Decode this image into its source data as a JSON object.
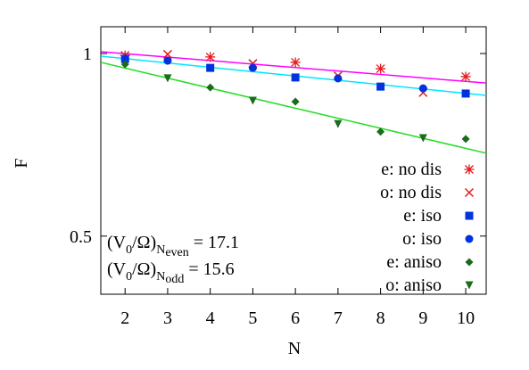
{
  "chart_data": {
    "type": "scatter",
    "xlabel": "N",
    "ylabel": "F",
    "log_y": true,
    "xlim": [
      1.43,
      10.48
    ],
    "ylim": [
      0.401,
      1.107
    ],
    "xticks": [
      2,
      3,
      4,
      5,
      6,
      7,
      8,
      9,
      10
    ],
    "yticks": [
      0.5,
      1
    ],
    "series": [
      {
        "name": "e: no dis",
        "color": "#e41a1c",
        "marker": "asterisk",
        "x": [
          2,
          4,
          6,
          8,
          10
        ],
        "values": [
          0.993,
          0.987,
          0.967,
          0.944,
          0.916
        ]
      },
      {
        "name": "o: no dis",
        "color": "#e41a1c",
        "marker": "x",
        "x": [
          3,
          5,
          7,
          9
        ],
        "values": [
          0.997,
          0.963,
          0.919,
          0.862
        ]
      },
      {
        "name": "e: iso",
        "color": "#0033dd",
        "marker": "square",
        "x": [
          2,
          4,
          6,
          8,
          10
        ],
        "values": [
          0.98,
          0.947,
          0.913,
          0.882,
          0.859
        ]
      },
      {
        "name": "o: iso",
        "color": "#0033dd",
        "marker": "circle",
        "x": [
          3,
          5,
          7,
          9
        ],
        "values": [
          0.973,
          0.947,
          0.91,
          0.876
        ]
      },
      {
        "name": "e: aniso",
        "color": "#1a6b1a",
        "marker": "diamond",
        "x": [
          2,
          4,
          6,
          8,
          10
        ],
        "values": [
          0.96,
          0.879,
          0.833,
          0.743,
          0.723
        ]
      },
      {
        "name": "o: aniso",
        "color": "#1a6b1a",
        "marker": "triangle-down",
        "x": [
          3,
          5,
          7,
          9
        ],
        "values": [
          0.91,
          0.836,
          0.765,
          0.725
        ]
      }
    ],
    "fits": [
      {
        "color": "#ff00ff",
        "x": [
          1.43,
          10.48
        ],
        "values": [
          1.007,
          0.894
        ]
      },
      {
        "color": "#00e5ff",
        "x": [
          1.43,
          10.48
        ],
        "values": [
          0.99,
          0.853
        ]
      },
      {
        "color": "#22dd22",
        "x": [
          1.43,
          10.48
        ],
        "values": [
          0.967,
          0.685
        ]
      }
    ],
    "annotations": [
      [
        {
          "text": "(V"
        },
        {
          "text": "0",
          "sub": true
        },
        {
          "text": "/Ω)"
        },
        {
          "text": "N",
          "sub": true
        },
        {
          "text": "even",
          "subsub": true
        },
        {
          "text": " = 17.1"
        }
      ],
      [
        {
          "text": "(V"
        },
        {
          "text": "0",
          "sub": true
        },
        {
          "text": "/Ω)"
        },
        {
          "text": "N",
          "sub": true
        },
        {
          "text": "odd",
          "subsub": true
        },
        {
          "text": " = 15.6"
        }
      ]
    ]
  }
}
